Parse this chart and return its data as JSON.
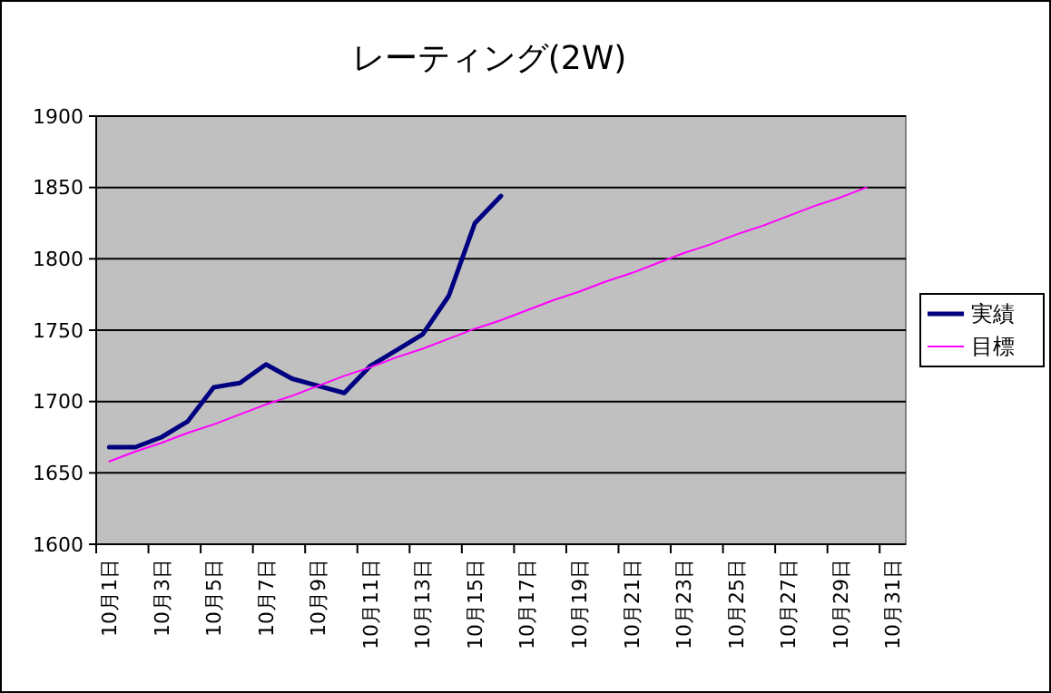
{
  "chart_data": {
    "type": "line",
    "title": "レーティング(2W)",
    "categories": [
      "10月1日",
      null,
      "10月3日",
      null,
      "10月5日",
      null,
      "10月7日",
      null,
      "10月9日",
      null,
      "10月11日",
      null,
      "10月13日",
      null,
      "10月15日",
      null,
      "10月17日",
      null,
      "10月19日",
      null,
      "10月21日",
      null,
      "10月23日",
      null,
      "10月25日",
      null,
      "10月27日",
      null,
      "10月29日",
      null,
      "10月31日"
    ],
    "series": [
      {
        "name": "実績",
        "color": "#000080",
        "values": [
          1668,
          1668,
          1675,
          1686,
          1710,
          1713,
          1726,
          1716,
          1711,
          1706,
          1725,
          1736,
          1747,
          1774,
          1825,
          1844,
          null,
          null,
          null,
          null,
          null,
          null,
          null,
          null,
          null,
          null,
          null,
          null,
          null,
          null,
          null
        ]
      },
      {
        "name": "目標",
        "color": "#ff00ff",
        "values": [
          1658,
          1665,
          1671,
          1678,
          1684,
          1691,
          1698,
          1704,
          1711,
          1718,
          1724,
          1731,
          1737,
          1744,
          1751,
          1757,
          1764,
          1771,
          1777,
          1784,
          1790,
          1797,
          1804,
          1810,
          1817,
          1823,
          1830,
          1837,
          1843,
          1850,
          null
        ]
      }
    ],
    "ylim": [
      1600,
      1900
    ],
    "yticks": [
      1600,
      1650,
      1700,
      1750,
      1800,
      1850,
      1900
    ],
    "grid": "y",
    "legend": "right",
    "marker": "none",
    "line_style": "solid"
  }
}
